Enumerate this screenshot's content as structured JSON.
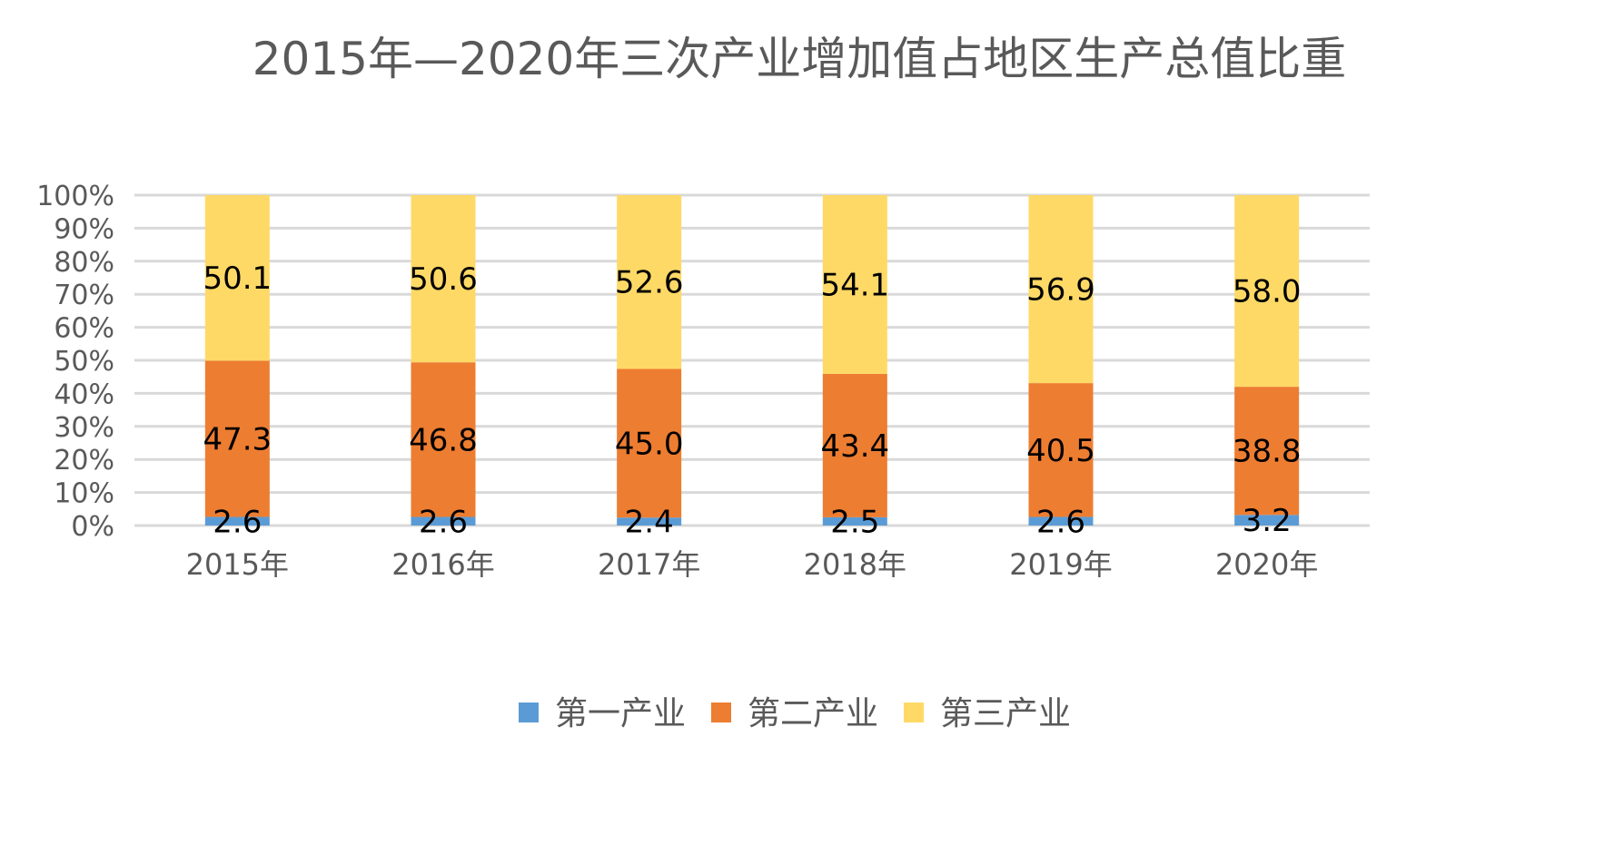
{
  "chart_data": {
    "type": "bar",
    "stacked": true,
    "percent_stacked": true,
    "title": "2015年—2020年三次产业增加值占地区生产总值比重",
    "categories": [
      "2015年",
      "2016年",
      "2017年",
      "2018年",
      "2019年",
      "2020年"
    ],
    "series": [
      {
        "name": "第一产业",
        "color": "#5b9bd5",
        "values": [
          2.6,
          2.6,
          2.4,
          2.5,
          2.6,
          3.2
        ],
        "labels": [
          "2.6",
          "2.6",
          "2.4",
          "2.5",
          "2.6",
          "3.2"
        ]
      },
      {
        "name": "第二产业",
        "color": "#ed7d31",
        "values": [
          47.3,
          46.8,
          45.0,
          43.4,
          40.5,
          38.8
        ],
        "labels": [
          "47.3",
          "46.8",
          "45.0",
          "43.4",
          "40.5",
          "38.8"
        ]
      },
      {
        "name": "第三产业",
        "color": "#ffd966",
        "values": [
          50.1,
          50.6,
          52.6,
          54.1,
          56.9,
          58.0
        ],
        "labels": [
          "50.1",
          "50.6",
          "52.6",
          "54.1",
          "56.9",
          "58.0"
        ]
      }
    ],
    "y_ticks": [
      "0%",
      "10%",
      "20%",
      "30%",
      "40%",
      "50%",
      "60%",
      "70%",
      "80%",
      "90%",
      "100%"
    ],
    "ylim": [
      0,
      100
    ],
    "grid": true,
    "legend_position": "bottom"
  }
}
